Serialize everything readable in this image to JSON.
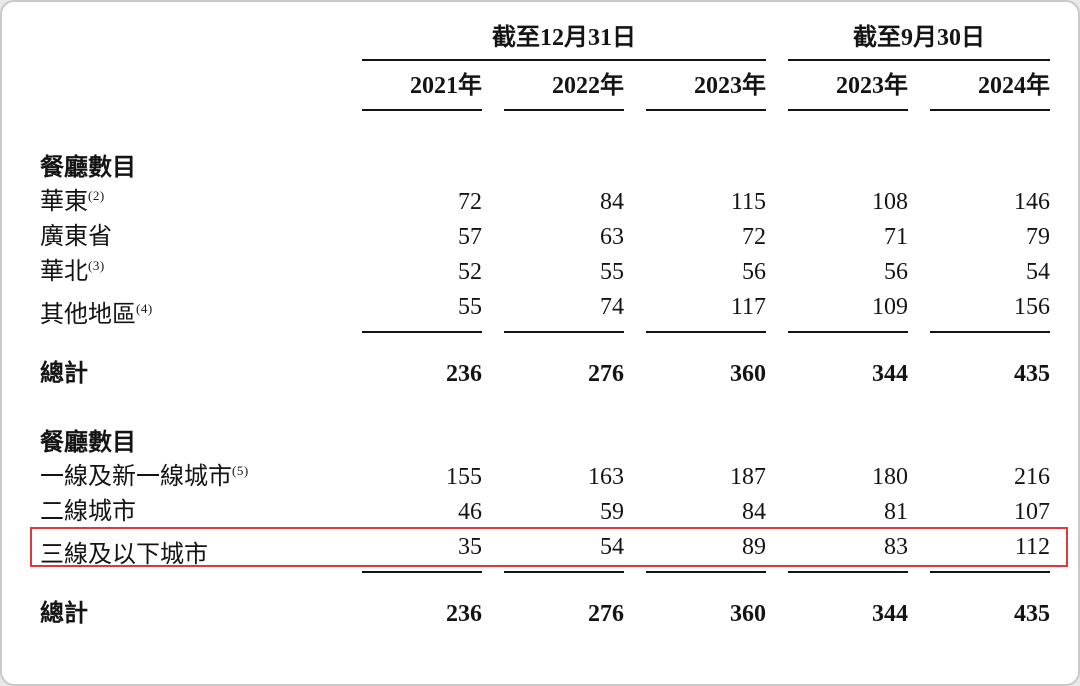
{
  "colors": {
    "highlight_border": "#dc3a3a",
    "rule_line": "#151515",
    "frame_border": "#c9c9c9",
    "background": "#ffffff"
  },
  "table": {
    "col_groups": [
      {
        "label": "截至12月31日",
        "span": 3
      },
      {
        "label": "截至9月30日",
        "span": 2
      }
    ],
    "year_headers": [
      "2021年",
      "2022年",
      "2023年",
      "2023年",
      "2024年"
    ],
    "sections": [
      {
        "title": "餐廳數目",
        "rows": [
          {
            "label": "華東",
            "sup": "(2)",
            "values": [
              "72",
              "84",
              "115",
              "108",
              "146"
            ]
          },
          {
            "label": "廣東省",
            "sup": "",
            "values": [
              "57",
              "63",
              "72",
              "71",
              "79"
            ]
          },
          {
            "label": "華北",
            "sup": "(3)",
            "values": [
              "52",
              "55",
              "56",
              "56",
              "54"
            ]
          },
          {
            "label": "其他地區",
            "sup": "(4)",
            "values": [
              "55",
              "74",
              "117",
              "109",
              "156"
            ]
          }
        ],
        "total": {
          "label": "總計",
          "values": [
            "236",
            "276",
            "360",
            "344",
            "435"
          ]
        }
      },
      {
        "title": "餐廳數目",
        "rows": [
          {
            "label": "一線及新一線城市",
            "sup": "(5)",
            "values": [
              "155",
              "163",
              "187",
              "180",
              "216"
            ]
          },
          {
            "label": "二線城市",
            "sup": "",
            "values": [
              "46",
              "59",
              "84",
              "81",
              "107"
            ]
          },
          {
            "label": "三線及以下城市",
            "sup": "",
            "values": [
              "35",
              "54",
              "89",
              "83",
              "112"
            ],
            "highlighted": true
          }
        ],
        "total": {
          "label": "總計",
          "values": [
            "236",
            "276",
            "360",
            "344",
            "435"
          ]
        }
      }
    ]
  }
}
